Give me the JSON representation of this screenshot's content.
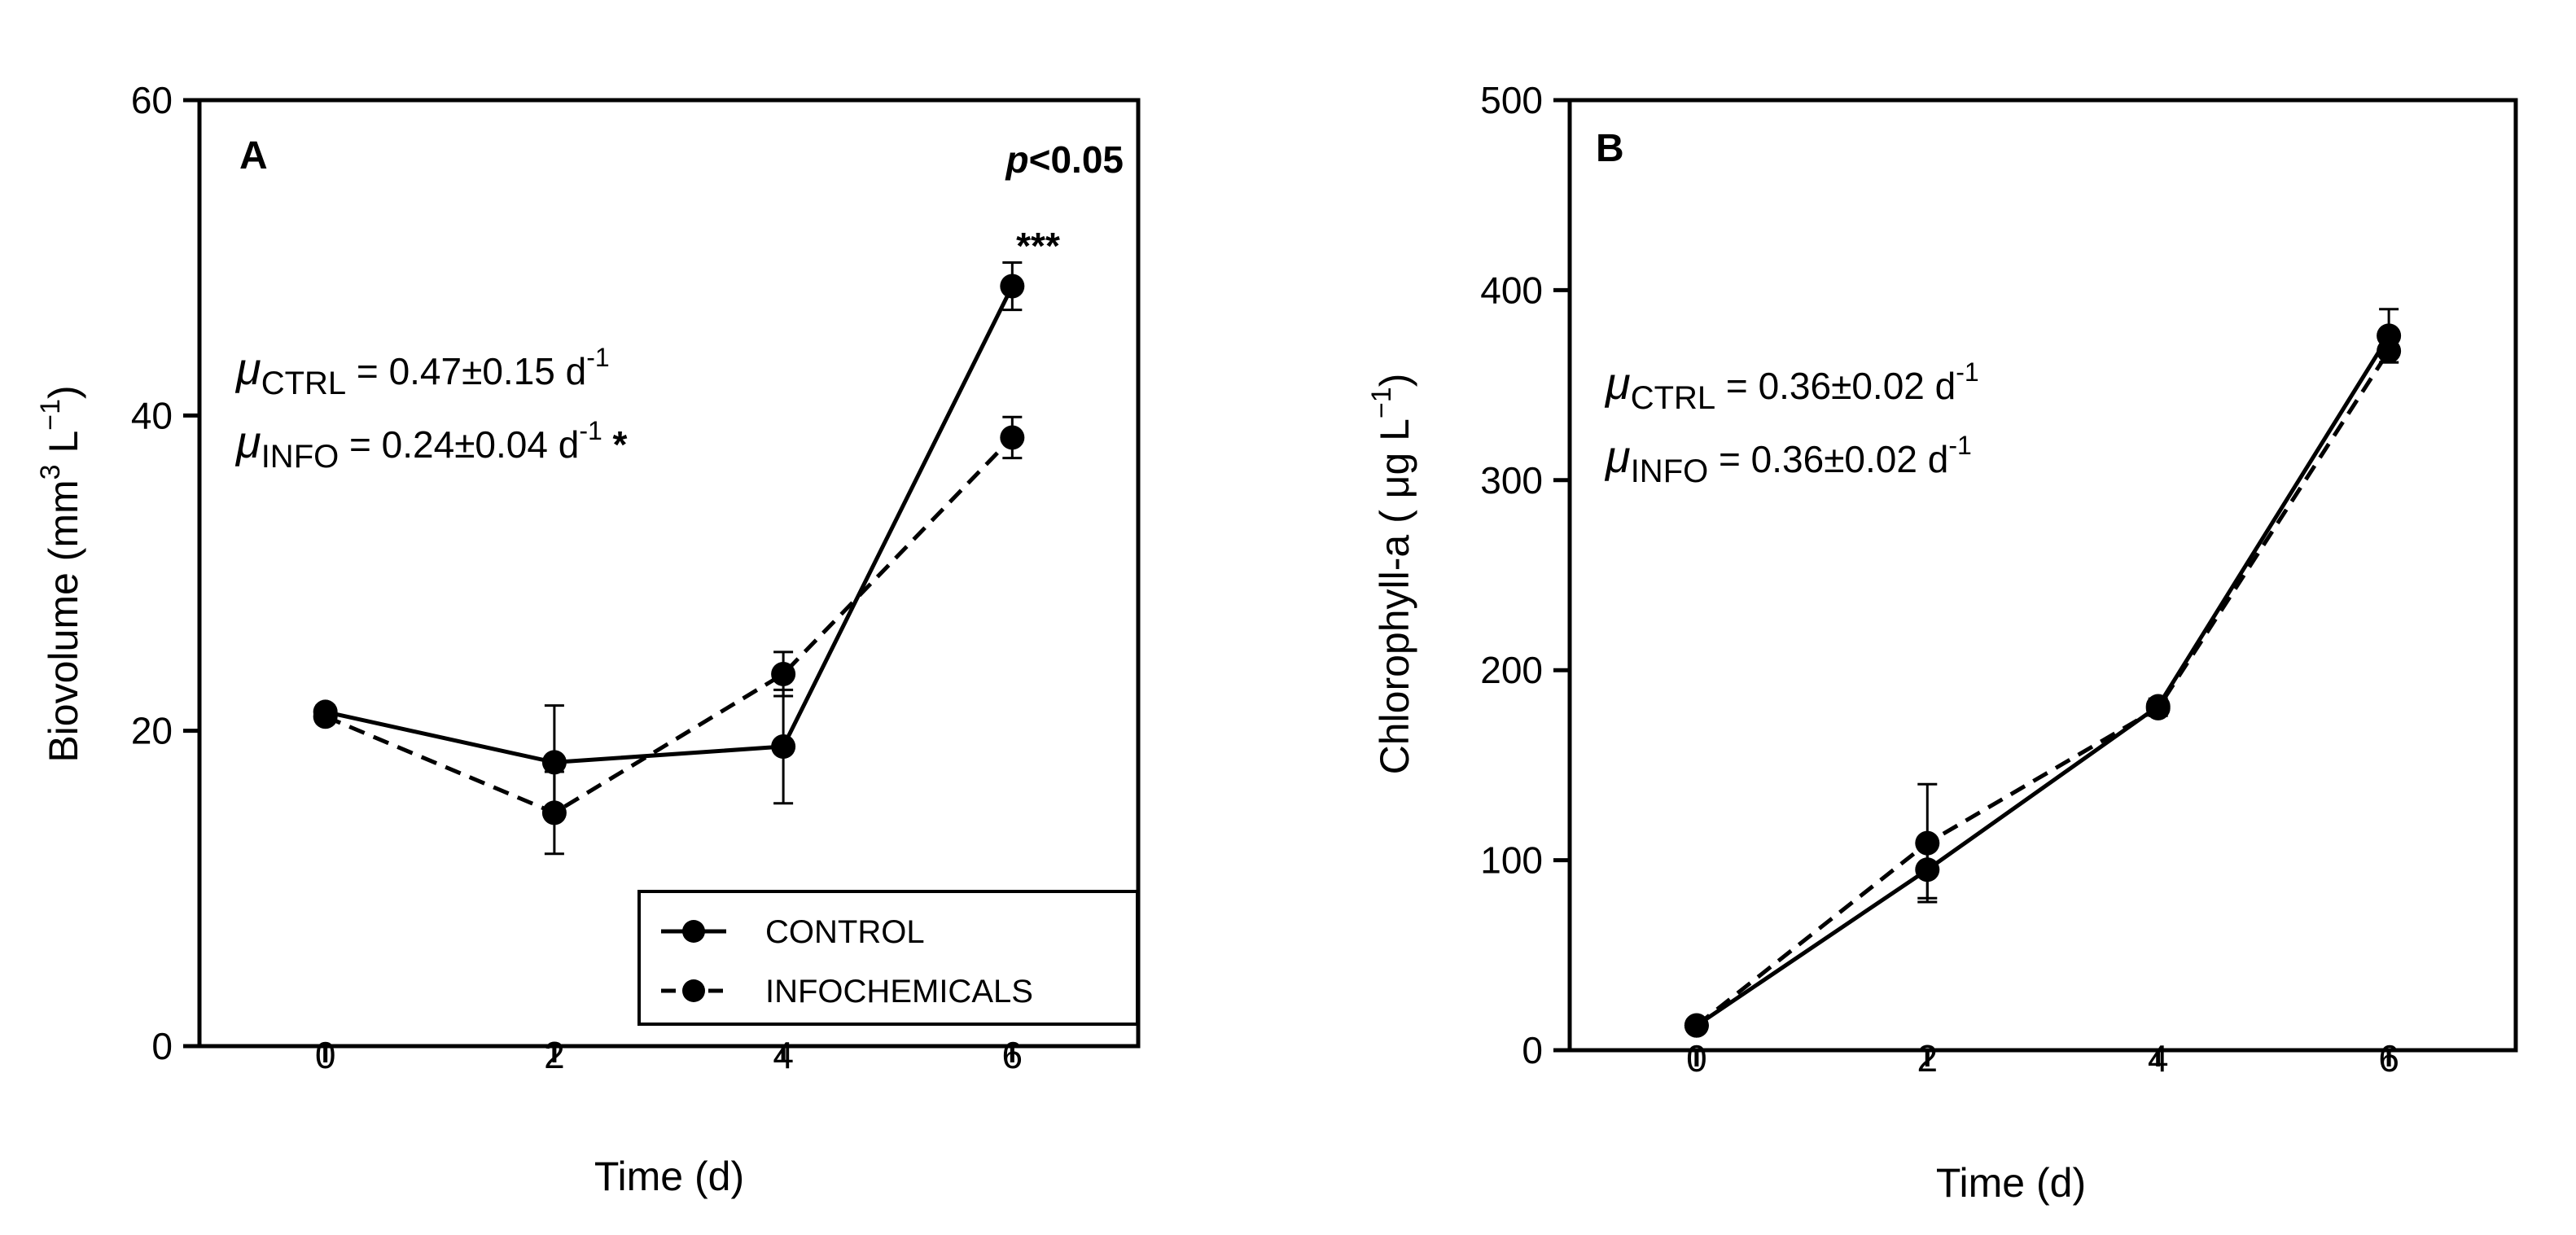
{
  "chart_data": [
    {
      "type": "line",
      "panel_label": "A",
      "xlabel": "Time (d)",
      "ylabel": {
        "main": "Biovolume (mm",
        "sup1": "3",
        "mid": " L",
        "sup2": "−1",
        "end": ")"
      },
      "xlim": [
        -1.1,
        7.1
      ],
      "ylim": [
        0,
        60
      ],
      "xticks": [
        0,
        2,
        4,
        6
      ],
      "yticks": [
        0,
        20,
        40,
        60
      ],
      "x": [
        0,
        2,
        4,
        6
      ],
      "series": [
        {
          "name": "CONTROL",
          "style": "solid",
          "values": [
            21.2,
            18.0,
            19.0,
            48.2
          ],
          "errors": [
            0.4,
            3.6,
            3.6,
            1.5
          ]
        },
        {
          "name": "INFOCHEMICALS",
          "style": "dashed",
          "values": [
            20.9,
            14.8,
            23.6,
            38.6
          ],
          "errors": [
            0.4,
            2.6,
            1.4,
            1.3
          ]
        }
      ],
      "annotations": {
        "significance": "***",
        "p_value": {
          "italic": "p",
          "rest": "<0.05"
        },
        "mu_ctrl": {
          "mu": "μ",
          "sub": "CTRL",
          "text": " = 0.47±0.15 d",
          "sup": "-1",
          "suffix": ""
        },
        "mu_info": {
          "mu": "μ",
          "sub": "INFO",
          "text": " = 0.24±0.04 d",
          "sup": "-1",
          "suffix": " *"
        }
      },
      "legend": {
        "position": "bottom-right",
        "entries": [
          "CONTROL",
          "INFOCHEMICALS"
        ]
      }
    },
    {
      "type": "line",
      "panel_label": "B",
      "xlabel": "Time  (d)",
      "ylabel": {
        "main": "Chlorophyll-a ( μg L",
        "sup1": "−1",
        "mid": "",
        "sup2": "",
        "end": ")"
      },
      "xlim": [
        -1.1,
        7.1
      ],
      "ylim": [
        0,
        500
      ],
      "xticks": [
        0,
        2,
        4,
        6
      ],
      "yticks": [
        0,
        100,
        200,
        300,
        400,
        500
      ],
      "x": [
        0,
        2,
        4,
        6
      ],
      "series": [
        {
          "name": "CONTROL",
          "style": "solid",
          "values": [
            13,
            95,
            181,
            376
          ],
          "errors": [
            0,
            15,
            4,
            14
          ]
        },
        {
          "name": "INFOCHEMICALS",
          "style": "dashed",
          "values": [
            13,
            109,
            180,
            368
          ],
          "errors": [
            0,
            31,
            4,
            6
          ]
        }
      ],
      "annotations": {
        "mu_ctrl": {
          "mu": "μ",
          "sub": "CTRL",
          "text": " = 0.36±0.02 d",
          "sup": "-1",
          "suffix": ""
        },
        "mu_info": {
          "mu": "μ",
          "sub": "INFO",
          "text": " = 0.36±0.02 d",
          "sup": "-1",
          "suffix": ""
        }
      }
    }
  ]
}
